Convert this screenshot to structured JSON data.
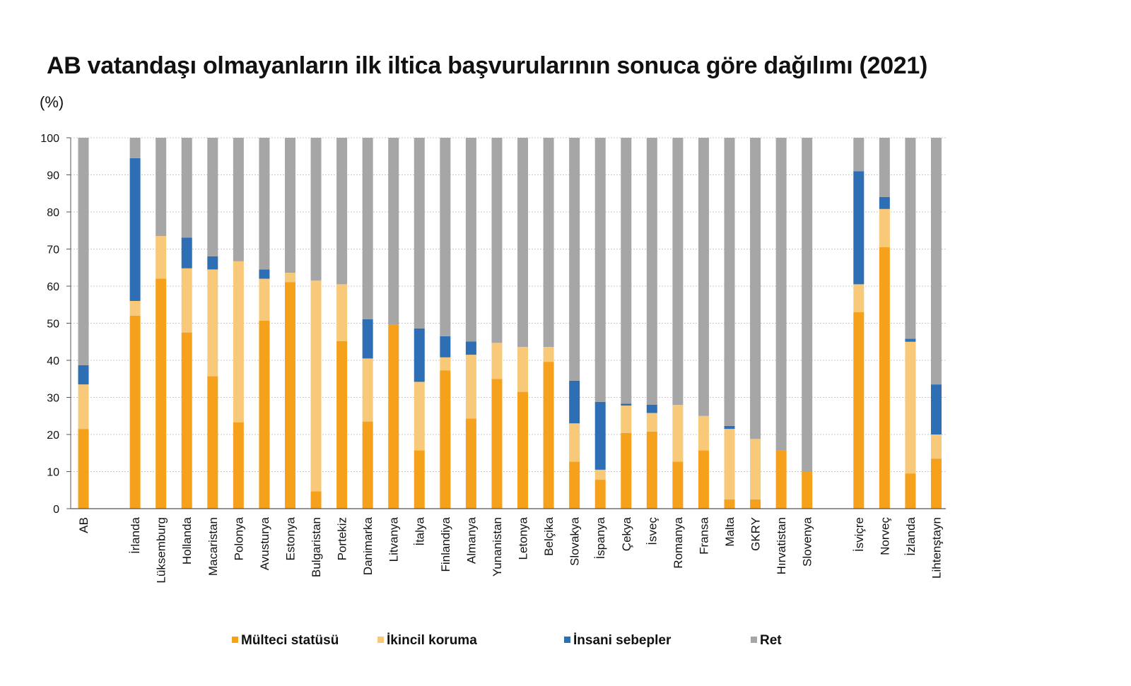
{
  "chart_data": {
    "type": "bar",
    "stacked": true,
    "title": "AB vatandaşı olmayanların ilk iltica başvurularının sonuca göre dağılımı (2021)",
    "ylabel": "(%)",
    "xlabel": "",
    "ylim": [
      0,
      100
    ],
    "yticks": [
      0,
      10,
      20,
      30,
      40,
      50,
      60,
      70,
      80,
      90,
      100
    ],
    "grid": true,
    "legend_position": "bottom",
    "categories": [
      "AB",
      "",
      "İrlanda",
      "Lüksemburg",
      "Hollanda",
      "Macaristan",
      "Polonya",
      "Avusturya",
      "Estonya",
      "Bulgaristan",
      "Portekiz",
      "Danimarka",
      "Litvanya",
      "İtalya",
      "Finlandiya",
      "Almanya",
      "Yunanistan",
      "Letonya",
      "Belçika",
      "Slovakya",
      "İspanya",
      "Çekya",
      "İsveç",
      "Romanya",
      "Fransa",
      "Malta",
      "GKRY",
      "Hırvatistan",
      "Slovenya",
      "",
      "İsviçre",
      "Norveç",
      "İzlanda",
      "Lihtenştayn"
    ],
    "series": [
      {
        "name": "Mülteci statüsü",
        "color": "#F5A11C",
        "values": [
          21.5,
          null,
          52,
          62,
          47.5,
          35.7,
          23.3,
          50.7,
          61.1,
          4.7,
          45.2,
          23.5,
          49.6,
          15.7,
          37.3,
          24.3,
          35,
          31.5,
          39.6,
          12.7,
          7.8,
          20.4,
          20.8,
          12.7,
          15.7,
          2.5,
          2.5,
          15.7,
          10,
          null,
          53,
          70.5,
          9.5,
          13.5
        ]
      },
      {
        "name": "İkincil koruma",
        "color": "#F9C97A",
        "values": [
          12,
          null,
          4,
          11.5,
          17.3,
          28.8,
          43.4,
          11.3,
          2.5,
          56.8,
          15.3,
          17,
          0,
          18.5,
          3.5,
          17.2,
          9.7,
          12.1,
          4,
          10.3,
          2.7,
          7.4,
          5,
          15.3,
          9.3,
          19,
          16.3,
          0,
          0,
          null,
          7.5,
          10.3,
          35.5,
          6.5
        ]
      },
      {
        "name": "İnsani sebepler",
        "color": "#2E6EB5",
        "values": [
          5.2,
          null,
          38.5,
          0,
          8.3,
          3.5,
          0,
          2.5,
          0,
          0,
          0,
          10.6,
          0,
          14.4,
          5.7,
          3.6,
          0,
          0,
          0,
          11.5,
          18.3,
          0.5,
          2.2,
          0,
          0,
          0.8,
          0,
          0,
          0,
          null,
          30.5,
          3.2,
          0.8,
          13.5
        ]
      },
      {
        "name": "Ret",
        "color": "#A6A6A6",
        "values": [
          61.3,
          null,
          5.5,
          26.5,
          26.9,
          32,
          33.3,
          35.5,
          36.4,
          38.5,
          39.5,
          48.9,
          50.4,
          51.4,
          53.5,
          54.9,
          55.3,
          56.4,
          56.4,
          65.5,
          71.2,
          71.7,
          72,
          72,
          75,
          77.7,
          81.2,
          84.3,
          90,
          null,
          9,
          16,
          54.2,
          66.5
        ]
      }
    ]
  }
}
